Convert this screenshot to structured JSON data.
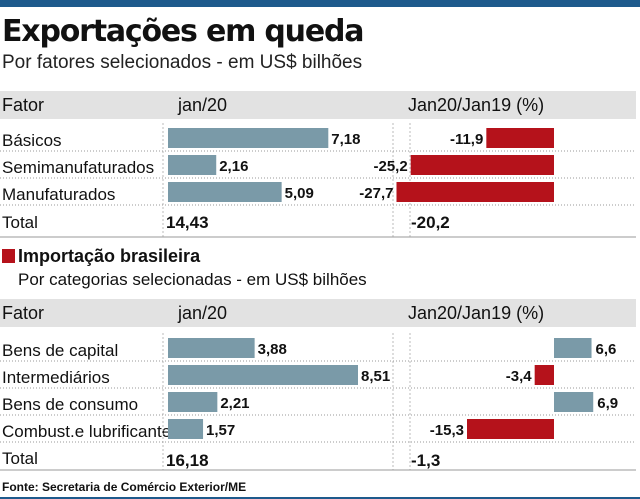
{
  "header": {
    "title": "Exportações em queda",
    "subtitle": "Por fatores selecionados  - em US$ bilhões"
  },
  "colors": {
    "accent": "#1e5a8c",
    "bar_blue": "#7a9aa8",
    "bar_red": "#b5121b",
    "header_bg": "#e2e2e2"
  },
  "section2": {
    "title": "Importação brasileira",
    "subtitle": "Por categorias selecionadas - em US$ bilhões"
  },
  "footer": {
    "source": "Fonte: Secretaria de Comércio Exterior/ME"
  },
  "chart_data": [
    {
      "type": "bar",
      "title": "Exportações em queda",
      "col_label": "Fator",
      "col_value": "jan/20",
      "col_change": "Jan20/Jan19 (%)",
      "categories": [
        "Básicos",
        "Semimanufaturados",
        "Manufaturados"
      ],
      "series": [
        {
          "name": "jan/20",
          "values": [
            7.18,
            2.16,
            5.09
          ],
          "labels": [
            "7,18",
            "2,16",
            "5,09"
          ]
        },
        {
          "name": "Jan20/Jan19 (%)",
          "values": [
            -11.9,
            -25.2,
            -27.7
          ],
          "labels": [
            "-11,9",
            "-25,2",
            "-27,7"
          ]
        }
      ],
      "total_label": "Total",
      "total_value": "14,43",
      "total_change": "-20,2"
    },
    {
      "type": "bar",
      "title": "Importação brasileira",
      "col_label": "Fator",
      "col_value": "jan/20",
      "col_change": "Jan20/Jan19 (%)",
      "categories": [
        "Bens de capital",
        "Intermediários",
        "Bens de consumo",
        "Combust.e lubrificantes"
      ],
      "series": [
        {
          "name": "jan/20",
          "values": [
            3.88,
            8.51,
            2.21,
            1.57
          ],
          "labels": [
            "3,88",
            "8,51",
            "2,21",
            "1,57"
          ]
        },
        {
          "name": "Jan20/Jan19 (%)",
          "values": [
            6.6,
            -3.4,
            6.9,
            -15.3
          ],
          "labels": [
            "6,6",
            "-3,4",
            "6,9",
            "-15,3"
          ]
        }
      ],
      "total_label": "Total",
      "total_value": "16,18",
      "total_change": "-1,3"
    }
  ]
}
